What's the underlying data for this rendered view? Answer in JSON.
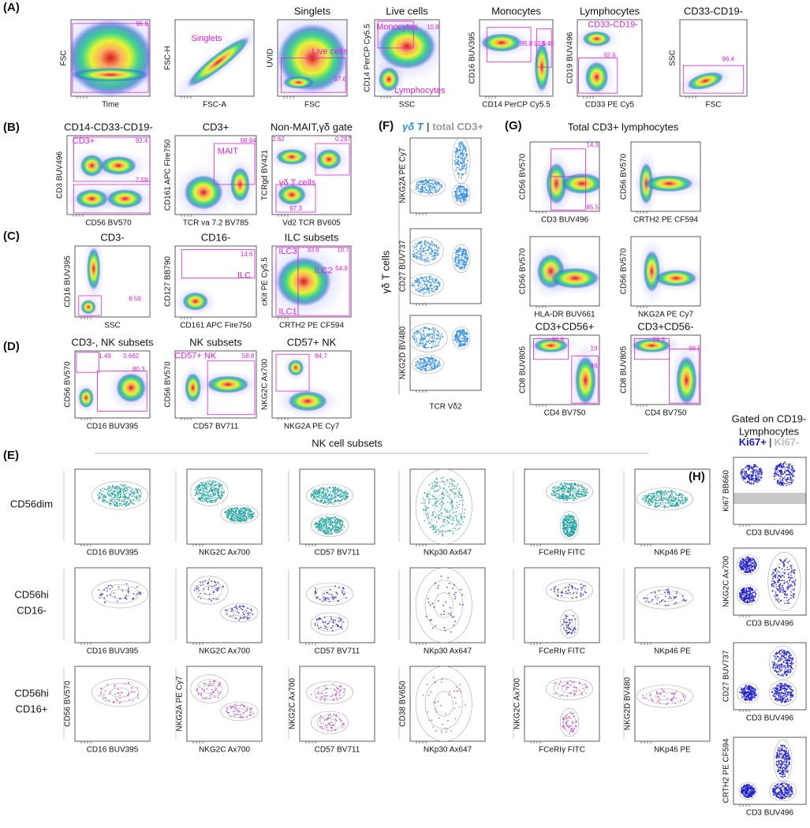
{
  "panels": {
    "A": {
      "letter": "(A)",
      "plots": [
        {
          "y_label": "FSC",
          "x_label": "Time",
          "gates": [
            "96.8"
          ]
        },
        {
          "y_label": "FSC-H",
          "x_label": "FSC-A",
          "gates": [
            "Singlets"
          ]
        },
        {
          "title": "Singlets",
          "y_label": "UVID",
          "x_label": "FSC",
          "gates": [
            "Live cells",
            "97.6"
          ]
        },
        {
          "title": "Live cells",
          "y_label": "CD14 PerCP Cy5.5",
          "x_label": "SSC",
          "gates": [
            "Monocytes",
            "10.8",
            "Lymphocytes"
          ]
        },
        {
          "title": "Monocytes",
          "y_label": "CD16 BUV395",
          "x_label": "CD14 PerCP Cy5.5",
          "gates": [
            "95.8",
            "12.9",
            "5.48"
          ]
        },
        {
          "title": "Lymphocytes",
          "y_label": "CD19 BUV496",
          "x_label": "CD33 PE Cy5",
          "gates": [
            "CD33-CD19-",
            "92.6"
          ]
        },
        {
          "title": "CD33-CD19-",
          "y_label": "SSC",
          "x_label": "FSC",
          "gates": [
            "96.4"
          ]
        }
      ]
    },
    "B": {
      "letter": "(B)",
      "plots": [
        {
          "title": "CD14-CD33-CD19-",
          "y_label": "CD3 BUV496",
          "x_label": "CD56 BV570",
          "gates": [
            "CD3+",
            "92.4",
            "7.59"
          ]
        },
        {
          "title": "CD3+",
          "y_label": "CD161 APC Fire750",
          "x_label": "TCR va 7.2 BV785",
          "gates": [
            "MAIT",
            "98.94"
          ]
        },
        {
          "title": "Non-MAIT,γδ gate",
          "y_label": "TCRgd BV421",
          "x_label": "Vd2 TCR BV605",
          "gates": [
            "2.62",
            "0.287",
            "γδ T cells",
            "97.3"
          ]
        }
      ]
    },
    "C": {
      "letter": "(C)",
      "plots": [
        {
          "title": "CD3-",
          "y_label": "CD16 BUV395",
          "x_label": "SSC",
          "gates": [
            "8.59"
          ]
        },
        {
          "title": "CD16-",
          "y_label": "CD127 BB790",
          "x_label": "CD161 APC Fire750",
          "gates": [
            "14.6",
            "ILC"
          ]
        },
        {
          "title": "ILC subsets",
          "y_label": "cKit PE Cy5.5",
          "x_label": "CRTH2 PE CF594",
          "gates": [
            "ILC3",
            "33.8",
            "10.7",
            "ILC2",
            "54.9",
            "ILC1"
          ]
        }
      ]
    },
    "D": {
      "letter": "(D)",
      "plots": [
        {
          "title": "CD3-, NK subsets",
          "y_label": "CD56 BV570",
          "x_label": "CD16 BUV395",
          "gates": [
            "1.49",
            "0.662",
            "80.3"
          ]
        },
        {
          "title": "NK subsets",
          "y_label": "CD56 BV570",
          "x_label": "CD57 BV711",
          "gates": [
            "CD57+ NK",
            "58.8"
          ]
        },
        {
          "title": "CD57+ NK",
          "y_label": "NKG2C Ax700",
          "x_label": "NKG2A PE Cy7",
          "gates": [
            "84.7"
          ]
        }
      ]
    },
    "F": {
      "letter": "(F)",
      "title_parts": [
        "γδ T",
        "|",
        "total CD3+"
      ],
      "side_label": "γδ T cells",
      "x_label": "TCR Vδ2",
      "plots": [
        {
          "y_label": "NKG2A PE Cy7"
        },
        {
          "y_label": "CD27 BUV737"
        },
        {
          "y_label": "NKG2D BV480"
        }
      ]
    },
    "G": {
      "letter": "(G)",
      "title": "Total CD3+ lymphocytes",
      "plots": [
        {
          "y_label": "CD56 BV570",
          "x_label": "CD3 BUV496",
          "gates": [
            "14.3",
            "85.5"
          ]
        },
        {
          "y_label": "CD56 BV570",
          "x_label": "CRTH2 PE CF594"
        },
        {
          "y_label": "CD56 BV570",
          "x_label": "HLA-DR BUV661"
        },
        {
          "y_label": "CD56 BV570",
          "x_label": "NKG2A PE Cy7"
        },
        {
          "title": "CD3+CD56+",
          "y_label": "CD8 BUV805",
          "x_label": "CD4 BV750",
          "gates": [
            "30.8",
            "19",
            "46"
          ]
        },
        {
          "title": "CD3+CD56-",
          "y_label": "CD8 BUV805",
          "x_label": "CD4 BV750",
          "gates": [
            "28.3",
            "69.5"
          ]
        }
      ]
    },
    "E": {
      "letter": "(E)",
      "title": "NK cell subsets",
      "row_labels": [
        [
          "CD56dim"
        ],
        [
          "CD56hi",
          "CD16-"
        ],
        [
          "CD56hi",
          "CD16+"
        ]
      ],
      "plots": [
        {
          "x_label": "CD16 BUV395"
        },
        {
          "x_label": "NKG2C Ax700"
        },
        {
          "x_label": "CD57 BV711"
        },
        {
          "x_label": "NKp30 Ax647"
        },
        {
          "x_label": "FCeRIγ FITC"
        },
        {
          "x_label": "NKp46 PE"
        },
        {
          "x_label": "CD16 BUV395"
        },
        {
          "x_label": "NKG2C Ax700"
        },
        {
          "x_label": "CD57 BV711"
        },
        {
          "x_label": "NKp30 Ax647"
        },
        {
          "x_label": "FCeRIγ FITC"
        },
        {
          "x_label": "NKp46 PE"
        },
        {
          "y_label": "CD56 BV570",
          "x_label": "CD16 BUV395"
        },
        {
          "y_label": "NKG2A PE Cy7",
          "x_label": "NKG2C Ax700"
        },
        {
          "y_label": "NKG2C Ax700",
          "x_label": "CD57 BV711"
        },
        {
          "y_label": "CD38 BV650",
          "x_label": "NKp30 Ax647"
        },
        {
          "y_label": "NKG2C Ax700",
          "x_label": "FCeRIγ FITC"
        },
        {
          "y_label": "NKG2D BV480",
          "x_label": "NKp46 PE"
        }
      ]
    },
    "H": {
      "letter": "(H)",
      "title_lines": [
        "Gated on CD19-",
        "Lymphocytes"
      ],
      "legend": [
        "Ki67+",
        "|",
        "Ki67-"
      ],
      "plots": [
        {
          "y_label": "Ki67 BB660",
          "x_label": "CD3 BUV496"
        },
        {
          "y_label": "NKG2C Ax700",
          "x_label": "CD3 BUV496"
        },
        {
          "y_label": "CD27 BUV737",
          "x_label": "CD3 BUV496"
        },
        {
          "y_label": "CRTH2 PE CF594",
          "x_label": "CD3 BUV496"
        }
      ]
    }
  }
}
